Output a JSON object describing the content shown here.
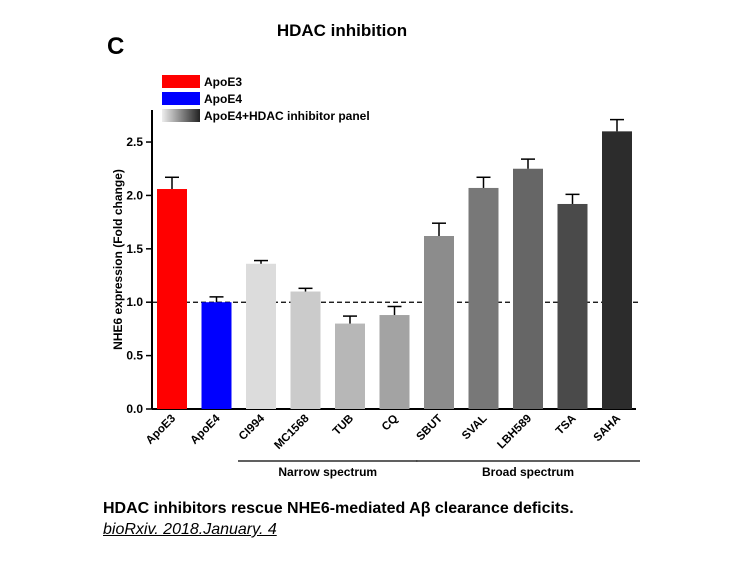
{
  "panel_label": "C",
  "caption": "HDAC inhibitors rescue NHE6-mediated Aβ clearance deficits.",
  "citation": "bioRxiv. 2018.January. 4",
  "colors": {
    "apoe3": "#ff0000",
    "apoe4": "#0000ff"
  },
  "chart_data": {
    "type": "bar",
    "title": "HDAC inhibition",
    "xlabel": "",
    "ylabel": "NHE6 expression (Fold change)",
    "ylim": [
      0,
      2.5
    ],
    "yticks": [
      "0.0",
      "0.5",
      "1.0",
      "1.5",
      "2.0",
      "2.5"
    ],
    "reference_line": 1.0,
    "categories": [
      "ApoE3",
      "ApoE4",
      "CI994",
      "MC1568",
      "TUB",
      "CQ",
      "SBUT",
      "SVAL",
      "LBH589",
      "TSA",
      "SAHA"
    ],
    "values": [
      2.06,
      1.0,
      1.36,
      1.1,
      0.8,
      0.88,
      1.62,
      2.07,
      2.25,
      1.92,
      2.6
    ],
    "errors": [
      0.11,
      0.05,
      0.03,
      0.03,
      0.07,
      0.08,
      0.12,
      0.1,
      0.09,
      0.09,
      0.11
    ],
    "bar_colors": [
      "#ff0000",
      "#0000ff",
      "#dcdcdc",
      "#cbcbcb",
      "#b7b7b7",
      "#a3a3a3",
      "#8c8c8c",
      "#787878",
      "#666666",
      "#4a4a4a",
      "#2c2c2c"
    ],
    "groups": [
      {
        "label": "Narrow spectrum",
        "from": 2,
        "to": 5
      },
      {
        "label": "Broad spectrum",
        "from": 6,
        "to": 10
      }
    ],
    "legend": [
      {
        "label": "ApoE3",
        "kind": "apoe3"
      },
      {
        "label": "ApoE4",
        "kind": "apoe4"
      },
      {
        "label": "ApoE4+HDAC  inhibitor panel",
        "kind": "gradient"
      }
    ],
    "legend_position": "top-left",
    "grid": false
  }
}
